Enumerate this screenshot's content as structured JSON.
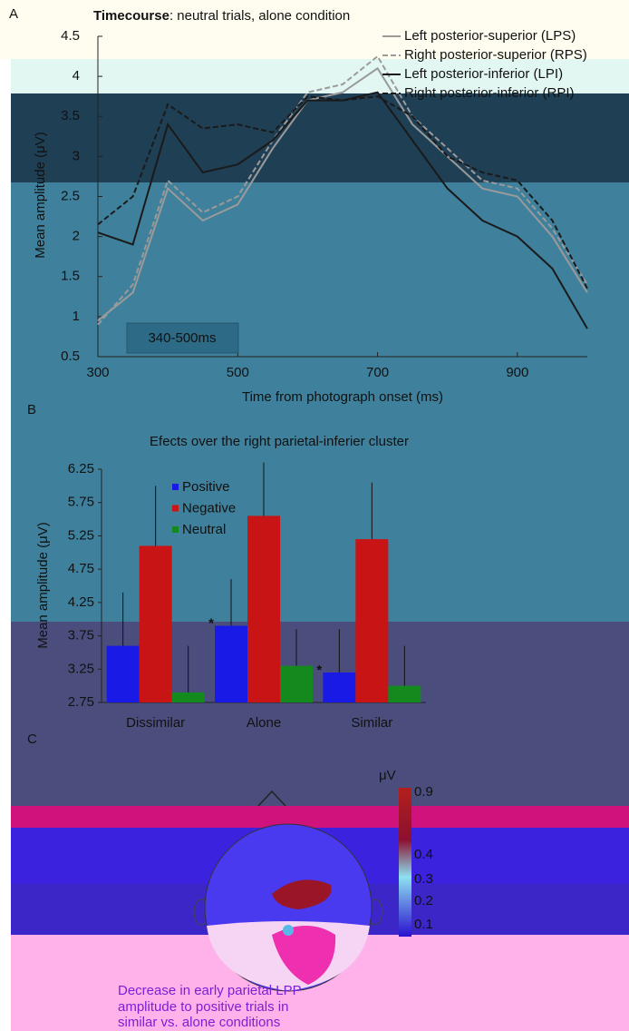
{
  "panel_labels": [
    "A",
    "B",
    "C"
  ],
  "chart_data": [
    {
      "type": "line",
      "title_bold": "Timecourse",
      "title": ": neutral trials, alone condition",
      "x_label": "Time from photograph onset (ms)",
      "y_label": "Mean amplitude (μV)",
      "x": [
        300,
        350,
        400,
        450,
        500,
        550,
        600,
        650,
        700,
        750,
        800,
        850,
        900,
        950,
        1000
      ],
      "series": [
        {
          "name": "Left posterior-superior (LPS)",
          "color": "#9a9a9a",
          "dash": false,
          "values": [
            0.95,
            1.3,
            2.6,
            2.2,
            2.4,
            3.1,
            3.7,
            3.8,
            4.1,
            3.4,
            3.0,
            2.6,
            2.5,
            2.0,
            1.3
          ]
        },
        {
          "name": "Right posterior-superior (RPS)",
          "color": "#9a9a9a",
          "dash": true,
          "values": [
            0.9,
            1.4,
            2.7,
            2.3,
            2.5,
            3.2,
            3.8,
            3.9,
            4.25,
            3.5,
            3.1,
            2.7,
            2.6,
            2.1,
            1.4
          ]
        },
        {
          "name": "Left posterior-inferior (LPI)",
          "color": "#1a1a1a",
          "dash": false,
          "values": [
            2.05,
            1.9,
            3.4,
            2.8,
            2.9,
            3.2,
            3.7,
            3.7,
            3.8,
            3.2,
            2.6,
            2.2,
            2.0,
            1.6,
            0.85
          ]
        },
        {
          "name": "Right posterior-inferior (RPI)",
          "color": "#1a1a1a",
          "dash": true,
          "values": [
            2.15,
            2.5,
            3.65,
            3.35,
            3.4,
            3.3,
            3.75,
            3.7,
            3.75,
            3.5,
            3.0,
            2.8,
            2.7,
            2.2,
            1.35
          ]
        }
      ],
      "annotation": "340-500ms",
      "xlim": [
        300,
        1000
      ],
      "xticks": [
        300,
        500,
        700,
        900
      ],
      "ylim": [
        0.5,
        4.5
      ],
      "yticks": [
        0.5,
        1,
        1.5,
        2,
        2.5,
        3,
        3.5,
        4,
        4.5
      ]
    },
    {
      "type": "bar",
      "title": "Efects over the right parietal-inferier cluster",
      "y_label": "Mean amplitude (μV)",
      "categories": [
        "Dissimilar",
        "Alone",
        "Similar"
      ],
      "series": [
        {
          "name": "Positive",
          "color": "#1a1ae6",
          "values": [
            3.6,
            3.9,
            3.2
          ],
          "errors": [
            0.8,
            0.7,
            0.65
          ],
          "marks": [
            null,
            "*",
            "*"
          ]
        },
        {
          "name": "Negative",
          "color": "#c81414",
          "values": [
            5.1,
            5.55,
            5.2
          ],
          "errors": [
            0.9,
            0.8,
            0.85
          ]
        },
        {
          "name": "Neutral",
          "color": "#148a1e",
          "values": [
            2.9,
            3.3,
            3.0
          ],
          "errors": [
            0.7,
            0.55,
            0.6
          ]
        }
      ],
      "ylim": [
        2.75,
        6.25
      ],
      "yticks": [
        2.75,
        3.25,
        3.75,
        4.25,
        4.75,
        5.25,
        5.75,
        6.25
      ]
    }
  ],
  "topomap": {
    "unit": "μV",
    "colorbar_labels": [
      "0.9",
      "0.4",
      "0.3",
      "0.2",
      "0.1"
    ],
    "caption": [
      "Decrease in early parietal LPP",
      "amplitude to positive trials in",
      "similar vs. alone conditions"
    ]
  }
}
